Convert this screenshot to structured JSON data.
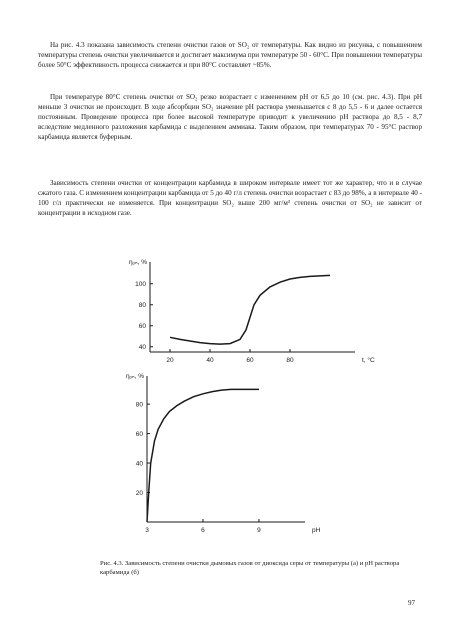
{
  "text": {
    "p1": "На рис. 4.3 показана зависимость степени очистки газов от SO₂ от температуры. Как видно из рисунка, с повышением температуры степень очистки увеличивается и достигает максимума при температуре 50 - 60°С. При повышении температуры более 50°С эффективность процесса снижается и при 80°С составляет ~85%.",
    "p2": "При температуре 80°С степень очистки от SO₂ резко возрастает с изменением рН от 6,5 до 10 (см. рис. 4.3). При рН меньше 3 очистки не происходит. В ходе абсорбции SO₂ значение рН раствора уменьшается с 8 до 5,5 - 6 и далее остается постоянным. Проведение процесса при более высокой температуре приводит к увеличению рН раствора до 8,5 - 8,7 вследствие медленного разложения карбамида с выделением аммиака. Таким образом, при температурах 70 - 95°С раствор карбамида является буферным.",
    "p3": "Зависимость степени очистки от концентрации карбамида в широком интервале имеет тот же характер, что и в случае сжатого газа. С изменением концентрации карбамида от 5 до 40 г/л степень очистки возрастает с 83 до 98%, а в интервале 40 - 100 г/л практически не изменяется. При концентрации SO₂ выше 200 мг/м³ степень очистки от SO₂ не зависит от концентрации в исходном газе."
  },
  "chart_data": [
    {
      "type": "line",
      "title": "",
      "ylabel": "ηₒₙ, %",
      "xlabel": "t, °C",
      "x_ticks": [
        20,
        40,
        60,
        80
      ],
      "y_ticks": [
        40,
        60,
        80,
        100
      ],
      "xlim": [
        10,
        110
      ],
      "ylim": [
        35,
        115
      ],
      "panel_label": "а",
      "series": [
        {
          "x": [
            20,
            25,
            30,
            35,
            40,
            45,
            50,
            55,
            58,
            60,
            62,
            65,
            70,
            75,
            80,
            85,
            90,
            95,
            100
          ],
          "values": [
            49,
            47,
            45.5,
            44,
            43,
            42.5,
            43,
            47,
            56,
            68,
            80,
            89,
            97,
            101.5,
            104.5,
            106,
            107,
            107.5,
            108
          ]
        }
      ]
    },
    {
      "type": "line",
      "title": "",
      "ylabel": "ηₒₙ, %",
      "xlabel": "pH",
      "x_ticks": [
        3,
        6,
        9
      ],
      "y_ticks": [
        20,
        40,
        60,
        80
      ],
      "xlim": [
        3,
        11.2
      ],
      "ylim": [
        0,
        95
      ],
      "panel_label": "б",
      "series": [
        {
          "x": [
            3,
            3.1,
            3.2,
            3.4,
            3.6,
            3.9,
            4.2,
            4.6,
            5,
            5.5,
            6,
            6.5,
            7,
            7.5,
            8,
            8.5,
            9
          ],
          "values": [
            0,
            22,
            40,
            55,
            63,
            70,
            75,
            79,
            82,
            85,
            87,
            88.5,
            89.5,
            90,
            90,
            90,
            90
          ]
        }
      ]
    }
  ],
  "caption": "Рис. 4.3. Зависимость степени очистки дымовых газов от диоксида серы от температуры (а) и рН раствора карбамида (б)",
  "page_number": "97"
}
